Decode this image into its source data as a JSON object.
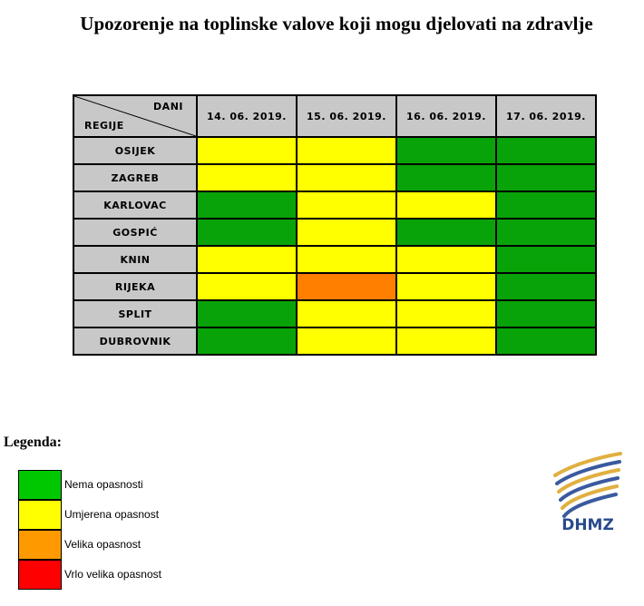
{
  "title": "Upozorenje na toplinske valove koji mogu djelovati na zdravlje",
  "table": {
    "corner_top": "DANI",
    "corner_bottom": "REGIJE",
    "dates": [
      "14. 06. 2019.",
      "15. 06. 2019.",
      "16. 06. 2019.",
      "17. 06. 2019."
    ],
    "rows": [
      {
        "region": "OSIJEK",
        "levels": [
          "yellow",
          "yellow",
          "green",
          "green"
        ]
      },
      {
        "region": "ZAGREB",
        "levels": [
          "yellow",
          "yellow",
          "green",
          "green"
        ]
      },
      {
        "region": "KARLOVAC",
        "levels": [
          "green",
          "yellow",
          "yellow",
          "green"
        ]
      },
      {
        "region": "GOSPIĆ",
        "levels": [
          "green",
          "yellow",
          "green",
          "green"
        ]
      },
      {
        "region": "KNIN",
        "levels": [
          "yellow",
          "yellow",
          "yellow",
          "green"
        ]
      },
      {
        "region": "RIJEKA",
        "levels": [
          "yellow",
          "orange",
          "yellow",
          "green"
        ]
      },
      {
        "region": "SPLIT",
        "levels": [
          "green",
          "yellow",
          "yellow",
          "green"
        ]
      },
      {
        "region": "DUBROVNIK",
        "levels": [
          "green",
          "yellow",
          "yellow",
          "green"
        ]
      }
    ]
  },
  "level_colors": {
    "green": "#08a308",
    "yellow": "#ffff00",
    "orange": "#ff7f00",
    "red": "#ff0000"
  },
  "legend": {
    "title": "Legenda:",
    "items": [
      {
        "label": "Nema opasnosti",
        "color": "#00c800"
      },
      {
        "label": "Umjerena opasnost",
        "color": "#ffff00"
      },
      {
        "label": "Velika opasnost",
        "color": "#ff9900"
      },
      {
        "label": "Vrlo velika opasnost",
        "color": "#ff0000"
      }
    ]
  },
  "logo": {
    "text": "DHMZ",
    "icon": "dhmz-logo-icon",
    "text_color": "#2a4a8c",
    "stripe_color": "#e0b040",
    "stripe_dark": "#3a5aa0"
  }
}
